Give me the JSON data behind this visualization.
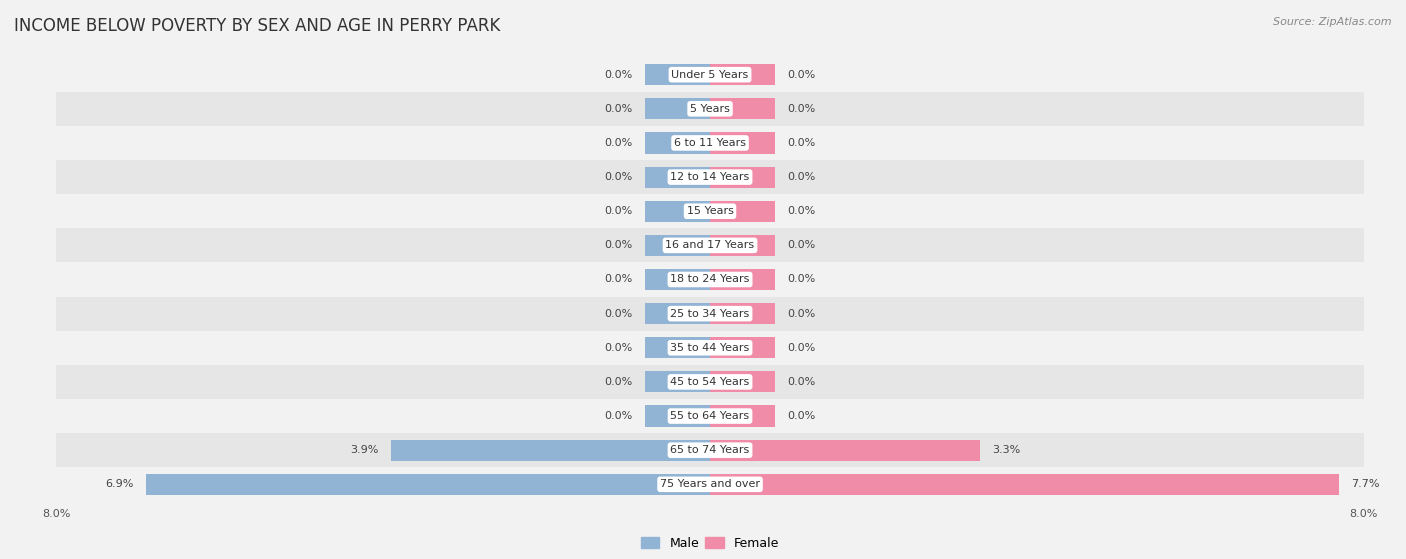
{
  "title": "INCOME BELOW POVERTY BY SEX AND AGE IN PERRY PARK",
  "source": "Source: ZipAtlas.com",
  "categories": [
    "Under 5 Years",
    "5 Years",
    "6 to 11 Years",
    "12 to 14 Years",
    "15 Years",
    "16 and 17 Years",
    "18 to 24 Years",
    "25 to 34 Years",
    "35 to 44 Years",
    "45 to 54 Years",
    "55 to 64 Years",
    "65 to 74 Years",
    "75 Years and over"
  ],
  "male_values": [
    0.0,
    0.0,
    0.0,
    0.0,
    0.0,
    0.0,
    0.0,
    0.0,
    0.0,
    0.0,
    0.0,
    3.9,
    6.9
  ],
  "female_values": [
    0.0,
    0.0,
    0.0,
    0.0,
    0.0,
    0.0,
    0.0,
    0.0,
    0.0,
    0.0,
    0.0,
    3.3,
    7.7
  ],
  "male_color": "#92b4d4",
  "female_color": "#f08ca8",
  "male_label": "Male",
  "female_label": "Female",
  "xlim": 8.0,
  "min_bar_val": 0.8,
  "bg_light": "#f2f2f2",
  "bg_dark": "#e6e6e6",
  "title_fontsize": 12,
  "source_fontsize": 8,
  "bar_label_fontsize": 8,
  "category_fontsize": 8
}
